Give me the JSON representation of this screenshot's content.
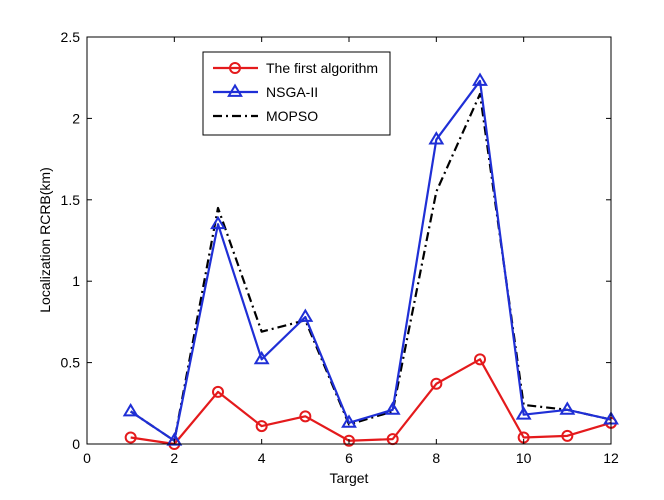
{
  "chart_data": {
    "type": "line",
    "title": "",
    "xlabel": "Target",
    "ylabel": "Localization RCRB(km)",
    "xlim": [
      0,
      12
    ],
    "ylim": [
      0,
      2.5
    ],
    "xticks": [
      0,
      2,
      4,
      6,
      8,
      10,
      12
    ],
    "yticks": [
      0,
      0.5,
      1,
      1.5,
      2,
      2.5
    ],
    "xtick_labels": [
      "0",
      "2",
      "4",
      "6",
      "8",
      "10",
      "12"
    ],
    "ytick_labels": [
      "0",
      "0.5",
      "1",
      "1.5",
      "2",
      "2.5"
    ],
    "grid": false,
    "legend_position": "top-left",
    "x": [
      1,
      2,
      3,
      4,
      5,
      6,
      7,
      8,
      9,
      10,
      11,
      12
    ],
    "series": [
      {
        "name": "The first algorithm",
        "color": "#e41a1c",
        "marker": "circle",
        "line_style": "solid",
        "values": [
          0.04,
          0.0,
          0.32,
          0.11,
          0.17,
          0.02,
          0.03,
          0.37,
          0.52,
          0.04,
          0.05,
          0.13
        ]
      },
      {
        "name": "NSGA-II",
        "color": "#1f2fd6",
        "marker": "triangle",
        "line_style": "solid",
        "values": [
          0.2,
          0.02,
          1.35,
          0.52,
          0.78,
          0.13,
          0.21,
          1.87,
          2.23,
          0.18,
          0.21,
          0.15
        ]
      },
      {
        "name": "MOPSO",
        "color": "#000000",
        "marker": "none",
        "line_style": "dash-dot",
        "values": [
          0.2,
          0.02,
          1.45,
          0.69,
          0.76,
          0.12,
          0.2,
          1.55,
          2.15,
          0.24,
          0.21,
          0.15
        ]
      }
    ]
  }
}
